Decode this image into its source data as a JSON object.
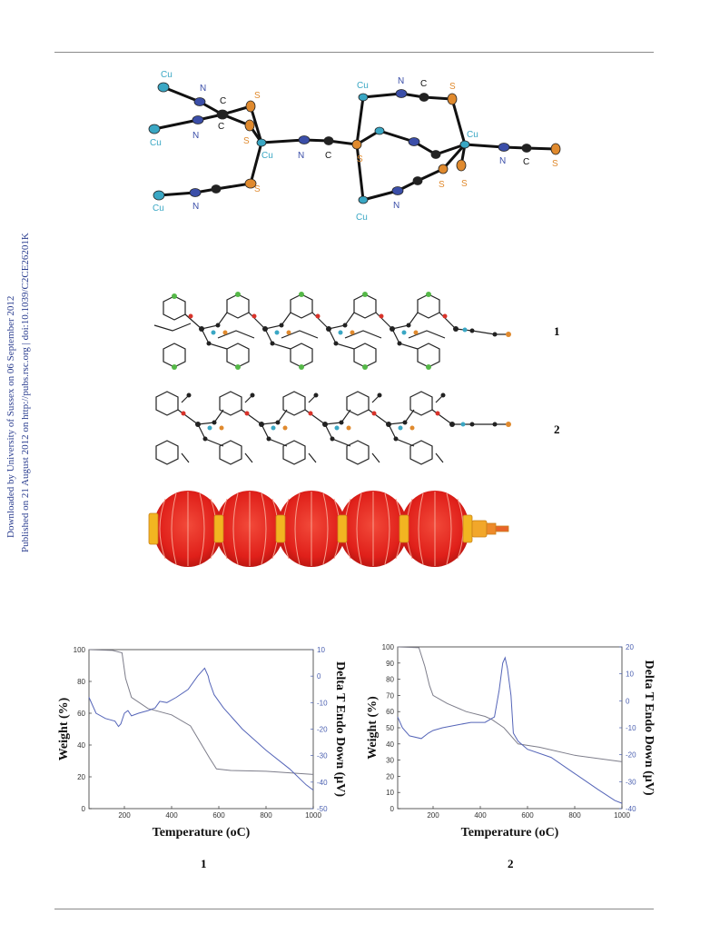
{
  "sidebar": {
    "line1": "Downloaded by University of Sussex on 06 September 2012",
    "line2": "Published on 21 August 2012 on http://pubs.rsc.org | doi:10.1039/C2CE26201K"
  },
  "structure": {
    "labels": {
      "cu": "Cu",
      "n": "N",
      "c": "C",
      "s": "S"
    }
  },
  "chains": {
    "label1": "1",
    "label2": "2"
  },
  "chart_data": [
    {
      "type": "line",
      "xlabel": "Temperature (oC)",
      "ylabel": "Weight (%)",
      "y2label": "Delta T Endo Down (μV)",
      "xlim": [
        50,
        1000
      ],
      "ylim": [
        0,
        100
      ],
      "y2lim": [
        -50,
        10
      ],
      "xticks": [
        200,
        400,
        600,
        800,
        1000
      ],
      "yticks": [
        0,
        20,
        40,
        60,
        80,
        100
      ],
      "y2ticks": [
        10,
        0,
        -10,
        -20,
        -30,
        -40,
        -50
      ],
      "series": [
        {
          "axis": "left",
          "x": [
            50,
            150,
            190,
            205,
            230,
            300,
            400,
            480,
            520,
            560,
            590,
            650,
            800,
            1000
          ],
          "y": [
            100,
            99.5,
            98,
            82,
            70,
            63,
            59,
            52,
            42,
            32,
            25,
            24,
            23.5,
            21.5
          ]
        },
        {
          "axis": "right",
          "x": [
            50,
            80,
            120,
            160,
            175,
            185,
            200,
            215,
            230,
            260,
            300,
            330,
            350,
            380,
            420,
            470,
            510,
            540,
            555,
            560,
            580,
            620,
            700,
            800,
            900,
            970,
            1000
          ],
          "y": [
            -8,
            -14,
            -16,
            -17,
            -19,
            -18,
            -14,
            -13,
            -15,
            -14,
            -13,
            -12,
            -9.5,
            -10,
            -8,
            -5,
            0,
            3,
            0,
            -2,
            -7,
            -12,
            -20,
            -28,
            -35,
            -41,
            -43
          ]
        }
      ],
      "caption": "1"
    },
    {
      "type": "line",
      "xlabel": "Temperature (oC)",
      "ylabel": "Weight (%)",
      "y2label": "Delta T Endo Down (μV)",
      "xlim": [
        50,
        1000
      ],
      "ylim": [
        0,
        100
      ],
      "y2lim": [
        -40,
        20
      ],
      "xticks": [
        200,
        400,
        600,
        800,
        1000
      ],
      "yticks": [
        0,
        10,
        20,
        30,
        40,
        50,
        60,
        70,
        80,
        90,
        100
      ],
      "y2ticks": [
        20,
        10,
        0,
        -10,
        -20,
        -30,
        -40
      ],
      "series": [
        {
          "axis": "left",
          "x": [
            50,
            140,
            165,
            185,
            200,
            260,
            340,
            420,
            450,
            500,
            560,
            650,
            800,
            1000
          ],
          "y": [
            100,
            99.5,
            88,
            76,
            70,
            65,
            60,
            57,
            55,
            50,
            40,
            38,
            33,
            29
          ]
        },
        {
          "axis": "right",
          "x": [
            50,
            70,
            100,
            150,
            180,
            200,
            240,
            300,
            360,
            420,
            460,
            480,
            495,
            505,
            515,
            530,
            540,
            560,
            600,
            700,
            800,
            900,
            970,
            1000
          ],
          "y": [
            -6,
            -10,
            -13,
            -14,
            -12,
            -11,
            -10,
            -9,
            -8,
            -8,
            -6,
            4,
            14,
            16,
            12,
            2,
            -12,
            -15,
            -18,
            -21,
            -27,
            -33,
            -37,
            -38
          ]
        }
      ],
      "caption": "2"
    }
  ]
}
